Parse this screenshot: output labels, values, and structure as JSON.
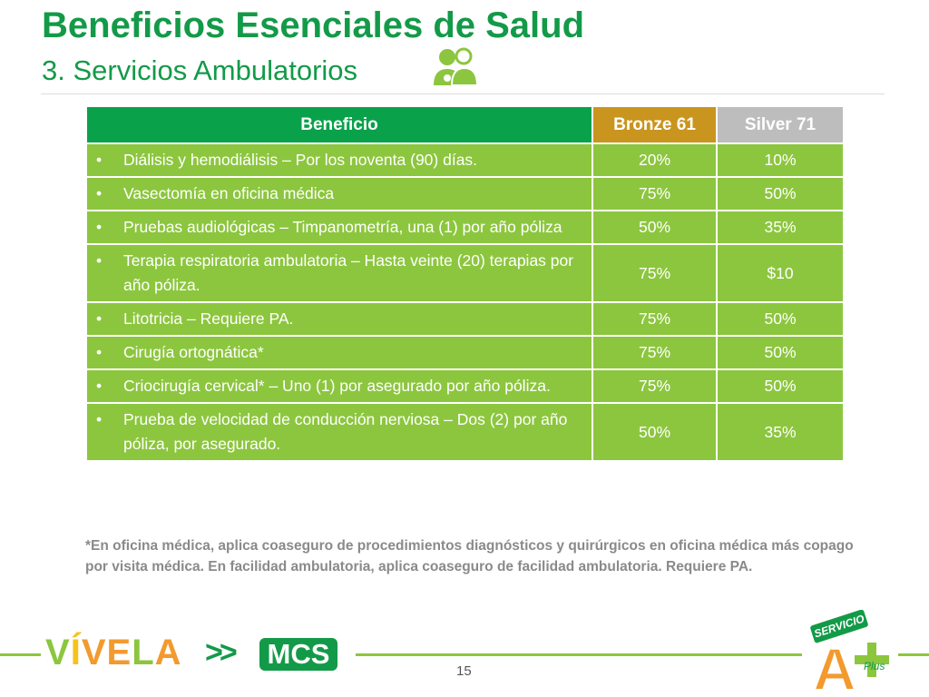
{
  "header": {
    "title": "Beneficios Esenciales de Salud",
    "subtitle": "3. Servicios Ambulatorios"
  },
  "table": {
    "columns": [
      "Beneficio",
      "Bronze 61",
      "Silver 71"
    ],
    "rows": [
      [
        "Diálisis y hemodiálisis – Por los noventa (90) días.",
        "20%",
        "10%"
      ],
      [
        "Vasectomía en oficina médica",
        "75%",
        "50%"
      ],
      [
        "Pruebas audiológicas – Timpanometría, una (1) por año póliza",
        "50%",
        "35%"
      ],
      [
        "Terapia respiratoria ambulatoria – Hasta veinte (20) terapias por año póliza.",
        "75%",
        "$10"
      ],
      [
        "Litotricia – Requiere PA.",
        "75%",
        "50%"
      ],
      [
        "Cirugía ortognática*",
        "75%",
        "50%"
      ],
      [
        "Criocirugía cervical* – Uno (1) por asegurado por año póliza.",
        "75%",
        "50%"
      ],
      [
        "Prueba de velocidad de conducción nerviosa – Dos (2) por año póliza, por asegurado.",
        "50%",
        "35%"
      ]
    ]
  },
  "footnote": "*En oficina médica, aplica coaseguro de procedimientos diagnósticos y quirúrgicos en oficina médica más copago por visita médica. En facilidad ambulatoria, aplica coaseguro de facilidad ambulatoria. Requiere PA.",
  "footer": {
    "brand": "VÍVELA",
    "arrows": ">>",
    "company": "MCS",
    "page_number": "15",
    "badge": {
      "top": "SERVICIO",
      "letter": "A",
      "script": "Plus"
    }
  }
}
